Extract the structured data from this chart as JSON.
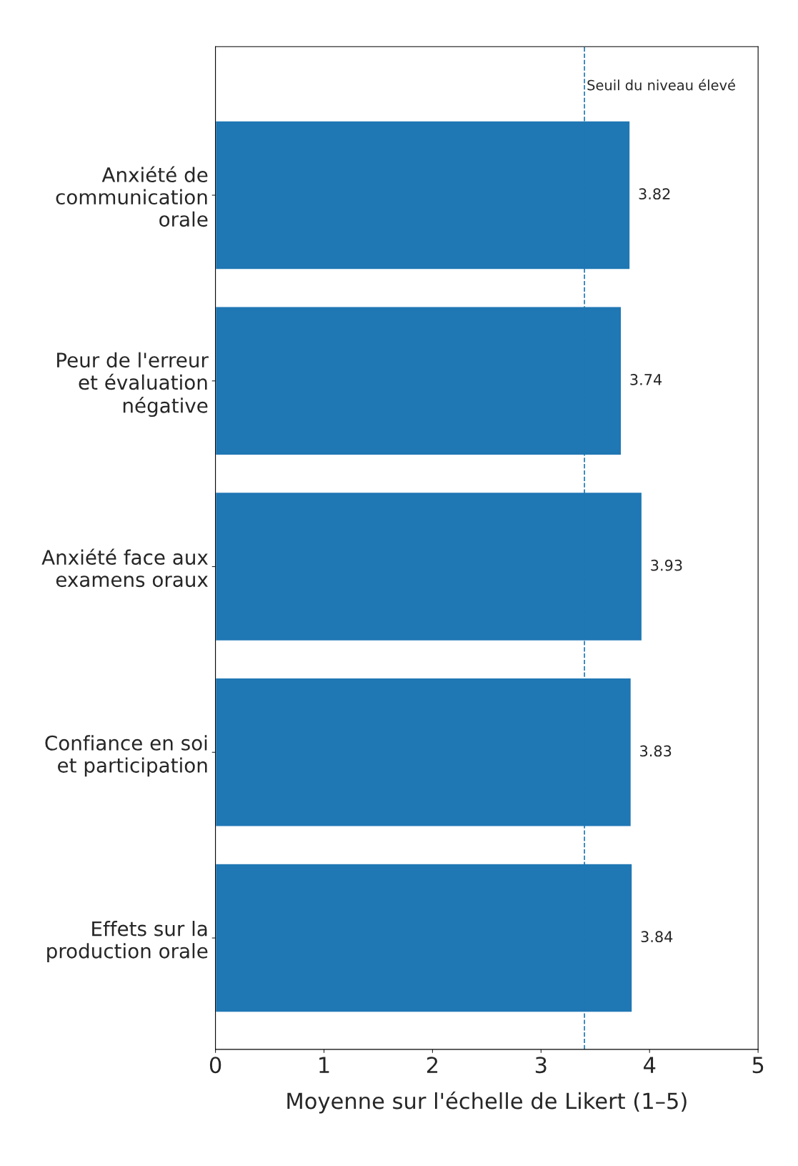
{
  "chart_data": {
    "type": "bar",
    "orientation": "horizontal",
    "categories": [
      "Anxiété de communication orale",
      "Peur de l'erreur et évaluation négative",
      "Anxiété face aux examens oraux",
      "Confiance en soi et participation",
      "Effets sur la production orale"
    ],
    "values": [
      3.82,
      3.74,
      3.93,
      3.83,
      3.84
    ],
    "color": "#1f77b4",
    "data_labels": true,
    "xlim": [
      0,
      5
    ],
    "xticks": [
      0,
      1,
      2,
      3,
      4,
      5
    ],
    "xlabel": "Moyenne sur l'échelle de Likert (1–5)",
    "ref_lines": [
      {
        "axis": "x",
        "value": 3.4,
        "label": "Seuil du niveau élevé",
        "color": "#1f77b4",
        "line_style": "dashed"
      }
    ],
    "grid": false
  }
}
